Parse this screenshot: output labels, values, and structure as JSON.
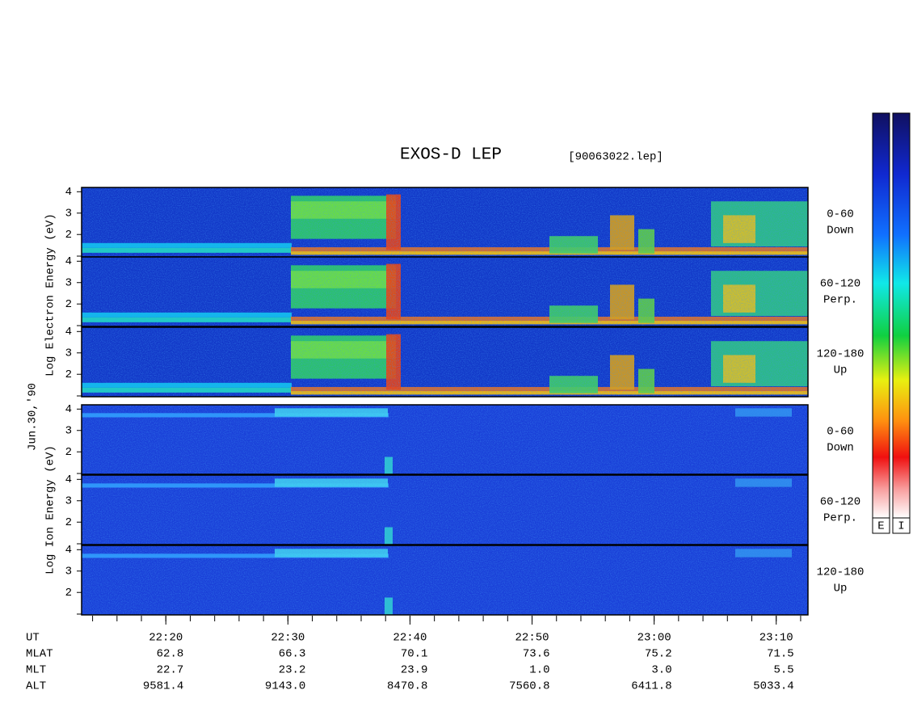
{
  "chart_data": {
    "type": "spectrogram",
    "title": "EXOS-D LEP",
    "file_label": "[90063022.lep]",
    "date_label": "Jun.30,'90",
    "groups": [
      {
        "label": "Log Electron Energy (eV)",
        "colorbar_label": "E"
      },
      {
        "label": "Log Ion Energy (eV)",
        "colorbar_label": "I"
      }
    ],
    "panels": [
      {
        "group": 0,
        "pitch_angle": "0-60",
        "direction": "Down",
        "ylim": [
          0.95,
          4.2
        ],
        "yticks": [
          2,
          3,
          4
        ]
      },
      {
        "group": 0,
        "pitch_angle": "60-120",
        "direction": "Perp.",
        "ylim": [
          0.95,
          4.2
        ],
        "yticks": [
          2,
          3,
          4
        ]
      },
      {
        "group": 0,
        "pitch_angle": "120-180",
        "direction": "Up",
        "ylim": [
          0.95,
          4.2
        ],
        "yticks": [
          2,
          3,
          4
        ]
      },
      {
        "group": 1,
        "pitch_angle": "0-60",
        "direction": "Down",
        "ylim": [
          0.95,
          4.2
        ],
        "yticks": [
          2,
          3,
          4
        ]
      },
      {
        "group": 1,
        "pitch_angle": "60-120",
        "direction": "Perp.",
        "ylim": [
          0.95,
          4.2
        ],
        "yticks": [
          2,
          3,
          4
        ]
      },
      {
        "group": 1,
        "pitch_angle": "120-180",
        "direction": "Up",
        "ylim": [
          0.95,
          4.2
        ],
        "yticks": [
          2,
          3,
          4
        ]
      }
    ],
    "xlim": [
      1333.1,
      1392.6
    ],
    "xticks": [
      {
        "value": 1340,
        "label": "22:20"
      },
      {
        "value": 1350,
        "label": "22:30"
      },
      {
        "value": 1360,
        "label": "22:40"
      },
      {
        "value": 1370,
        "label": "22:50"
      },
      {
        "value": 1380,
        "label": "23:00"
      },
      {
        "value": 1390,
        "label": "23:10"
      }
    ],
    "x_label": "UT",
    "ephemeris": [
      {
        "label": "MLAT",
        "values": [
          "62.8",
          "66.3",
          "70.1",
          "73.6",
          "75.2",
          "71.5"
        ]
      },
      {
        "label": "MLT",
        "values": [
          "22.7",
          "23.2",
          "23.9",
          "1.0",
          "3.0",
          "5.5"
        ]
      },
      {
        "label": "ALT",
        "values": [
          "9581.4",
          "9143.0",
          "8470.8",
          "7560.8",
          "6411.8",
          "5033.4"
        ]
      }
    ]
  }
}
